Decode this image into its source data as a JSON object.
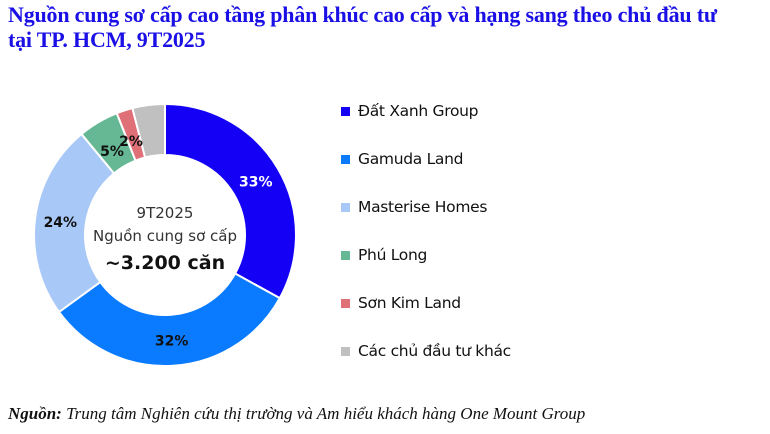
{
  "title": {
    "line1": "Nguồn cung sơ cấp cao tầng phân khúc cao cấp và hạng sang theo chủ đầu tư",
    "line2": "tại TP. HCM, 9T2025"
  },
  "center": {
    "period": "9T2025",
    "label": "Nguồn cung sơ cấp",
    "total": "~3.200 căn"
  },
  "legend": [
    {
      "label": "Đất Xanh Group",
      "color": "#1400f5"
    },
    {
      "label": "Gamuda Land",
      "color": "#0a7bff"
    },
    {
      "label": "Masterise Homes",
      "color": "#a8c8f8"
    },
    {
      "label": "Phú Long",
      "color": "#66b894"
    },
    {
      "label": "Sơn Kim Land",
      "color": "#e07078"
    },
    {
      "label": "Các chủ đầu tư khác",
      "color": "#c0c0c0"
    }
  ],
  "slice_labels": [
    "33%",
    "32%",
    "24%",
    "5%",
    "2%",
    ""
  ],
  "source": {
    "prefix": "Nguồn:",
    "text": " Trung tâm Nghiên cứu thị trường và Am hiểu khách hàng One Mount Group"
  },
  "chart_data": {
    "type": "pie",
    "subtype": "donut",
    "title": "Nguồn cung sơ cấp cao tầng phân khúc cao cấp và hạng sang theo chủ đầu tư tại TP. HCM, 9T2025",
    "center_annotation": [
      "9T2025",
      "Nguồn cung sơ cấp",
      "~3.200 căn"
    ],
    "categories": [
      "Đất Xanh Group",
      "Gamuda Land",
      "Masterise Homes",
      "Phú Long",
      "Sơn Kim Land",
      "Các chủ đầu tư khác"
    ],
    "values": [
      33,
      32,
      24,
      5,
      2,
      4
    ],
    "value_labels": [
      "33%",
      "32%",
      "24%",
      "5%",
      "2%",
      ""
    ],
    "unit": "%",
    "colors": [
      "#1400f5",
      "#0a7bff",
      "#a8c8f8",
      "#66b894",
      "#e07078",
      "#c0c0c0"
    ],
    "legend_position": "right",
    "start_angle": "12 o'clock, clockwise",
    "source": "Nguồn: Trung tâm Nghiên cứu thị trường và Am hiểu khách hàng One Mount Group"
  }
}
